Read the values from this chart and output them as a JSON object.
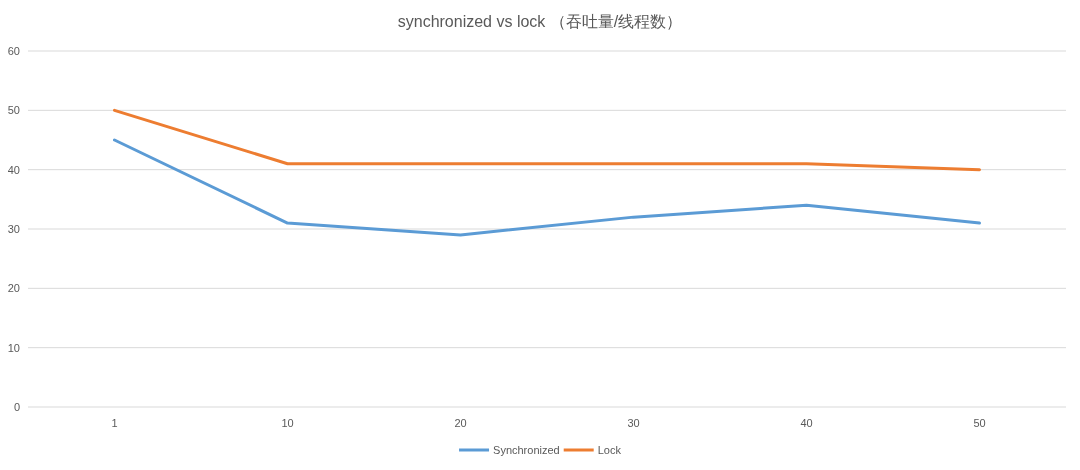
{
  "chart_data": {
    "type": "line",
    "title": "synchronized vs lock （吞吐量/线程数）",
    "categories": [
      "1",
      "10",
      "20",
      "30",
      "40",
      "50"
    ],
    "series": [
      {
        "name": "Synchronized",
        "color": "#5b9bd5",
        "values": [
          45,
          31,
          29,
          32,
          34,
          31
        ]
      },
      {
        "name": "Lock",
        "color": "#ed7d31",
        "values": [
          50,
          41,
          41,
          41,
          41,
          40
        ]
      }
    ],
    "ylim": [
      0,
      60
    ],
    "yticks": [
      0,
      10,
      20,
      30,
      40,
      50,
      60
    ],
    "grid": "y",
    "legend": "bottom"
  }
}
